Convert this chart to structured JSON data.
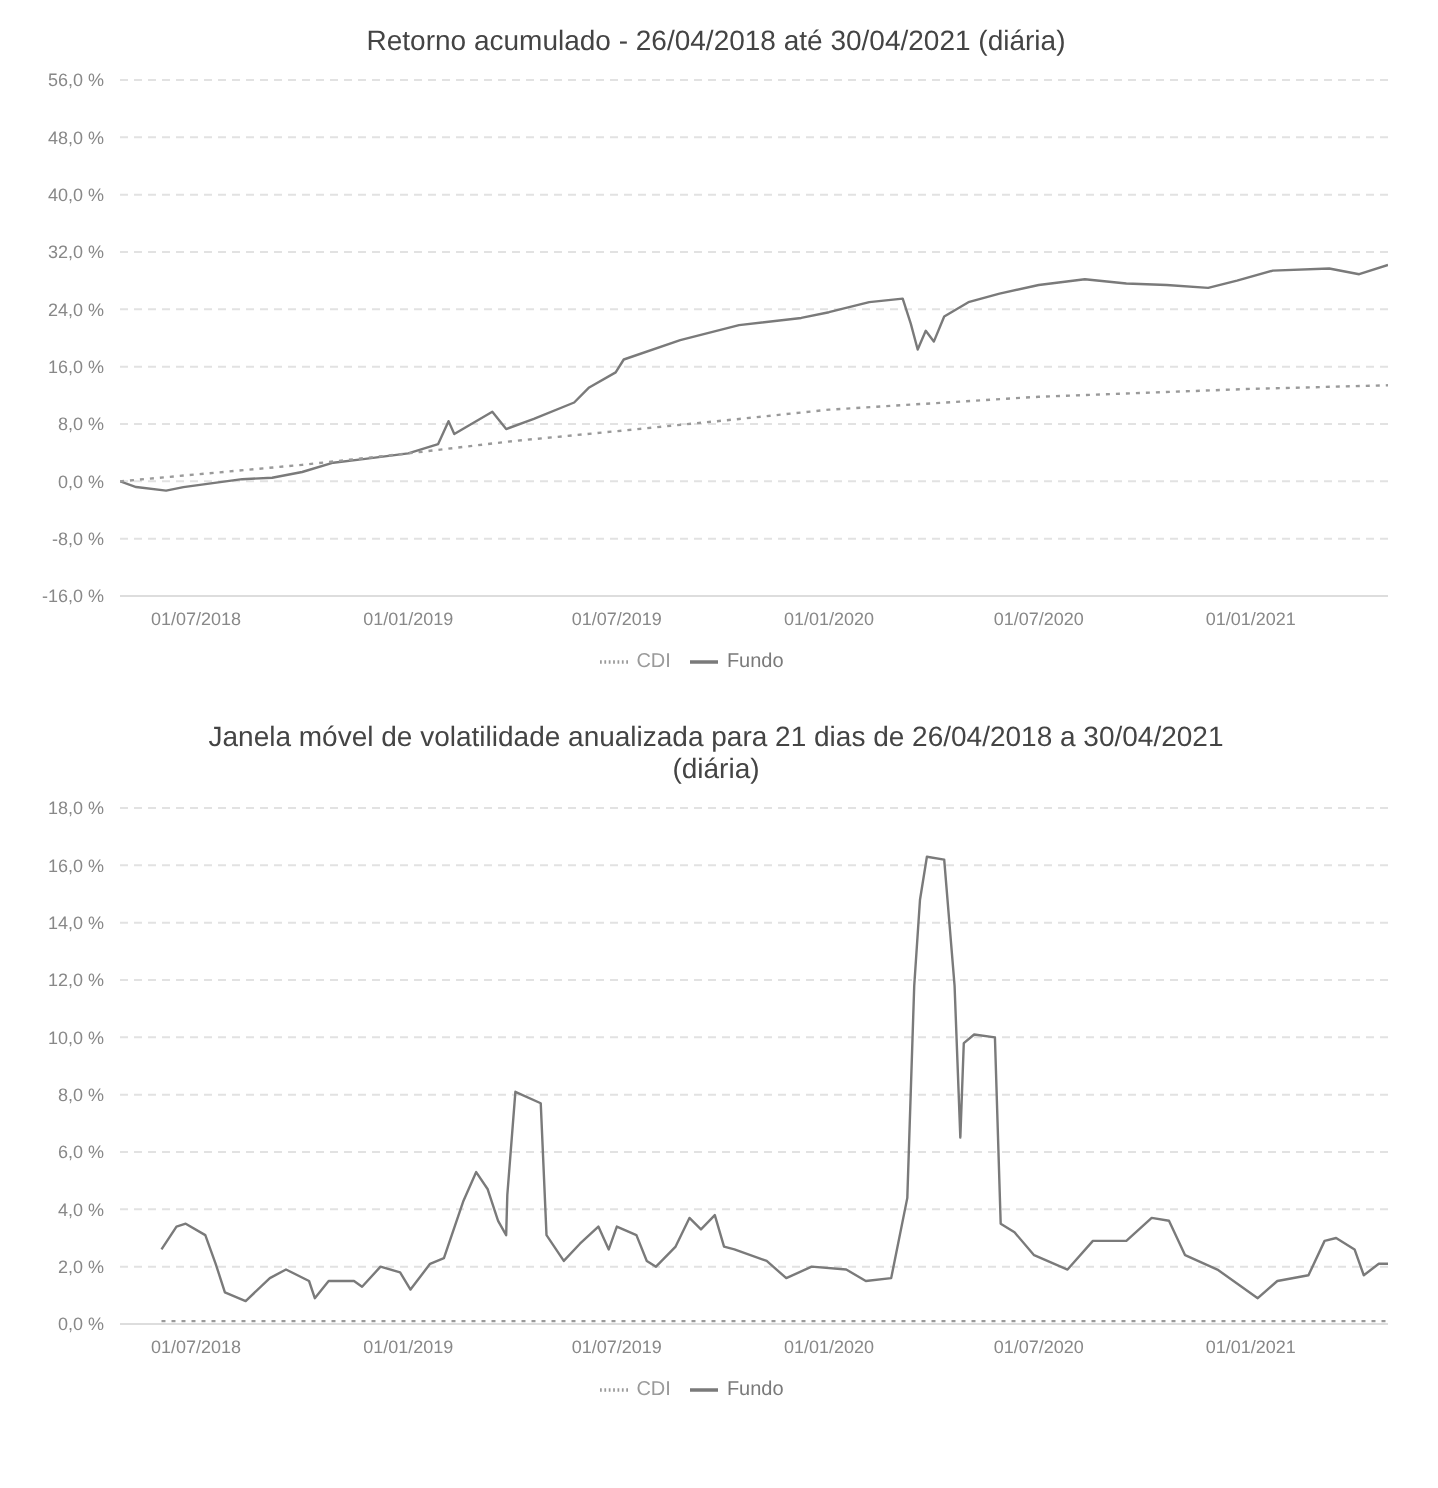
{
  "chart_data": [
    {
      "type": "line",
      "title": "Retorno acumulado - 26/04/2018 até 30/04/2021 (diária)",
      "xlim": [
        "2018-04-26",
        "2021-04-30"
      ],
      "xticks": [
        {
          "value": "2018-07-01",
          "label": "01/07/2018"
        },
        {
          "value": "2019-01-01",
          "label": "01/01/2019"
        },
        {
          "value": "2019-07-01",
          "label": "01/07/2019"
        },
        {
          "value": "2020-01-01",
          "label": "01/01/2020"
        },
        {
          "value": "2020-07-01",
          "label": "01/07/2020"
        },
        {
          "value": "2021-01-01",
          "label": "01/01/2021"
        }
      ],
      "ylim": [
        -16,
        56
      ],
      "yticks": [
        {
          "value": -16,
          "label": "-16,0 %"
        },
        {
          "value": -8,
          "label": "-8,0 %"
        },
        {
          "value": 0,
          "label": "0,0 %"
        },
        {
          "value": 8,
          "label": "8,0 %"
        },
        {
          "value": 16,
          "label": "16,0 %"
        },
        {
          "value": 24,
          "label": "24,0 %"
        },
        {
          "value": 32,
          "label": "32,0 %"
        },
        {
          "value": 40,
          "label": "40,0 %"
        },
        {
          "value": 48,
          "label": "48,0 %"
        },
        {
          "value": 56,
          "label": "56,0 %"
        }
      ],
      "grid": "y",
      "legend": "bottom",
      "series": [
        {
          "name": "Fundo",
          "color": "#7a7a7a",
          "line_style": "solid",
          "x": [
            "2018-04-26",
            "2018-05-10",
            "2018-06-05",
            "2018-06-20",
            "2018-08-10",
            "2018-09-05",
            "2018-10-01",
            "2018-10-28",
            "2018-11-23",
            "2019-01-01",
            "2019-01-27",
            "2019-02-05",
            "2019-02-10",
            "2019-03-15",
            "2019-03-27",
            "2019-04-20",
            "2019-05-25",
            "2019-06-07",
            "2019-06-30",
            "2019-07-07",
            "2019-08-25",
            "2019-10-15",
            "2019-12-08",
            "2020-01-01",
            "2020-02-05",
            "2020-03-05",
            "2020-03-12",
            "2020-03-18",
            "2020-03-25",
            "2020-04-01",
            "2020-04-10",
            "2020-05-01",
            "2020-05-28",
            "2020-07-01",
            "2020-08-10",
            "2020-09-15",
            "2020-10-20",
            "2020-11-25",
            "2020-12-20",
            "2021-01-20",
            "2021-03-10",
            "2021-04-05",
            "2021-04-30"
          ],
          "values": [
            0,
            -0.8,
            -1.3,
            -0.8,
            0.3,
            0.5,
            1.3,
            2.6,
            3.1,
            3.9,
            5.2,
            8.4,
            6.6,
            9.7,
            7.3,
            8.7,
            11,
            13.1,
            15.2,
            17,
            19.7,
            21.8,
            22.8,
            23.6,
            25,
            25.5,
            22,
            18.4,
            21,
            19.5,
            23,
            25,
            26.2,
            27.4,
            28.2,
            27.6,
            27.4,
            27,
            28,
            29.4,
            29.7,
            28.9,
            30.2
          ]
        },
        {
          "name": "CDI",
          "color": "#9a9a9a",
          "line_style": "dotted",
          "x": [
            "2018-04-26",
            "2018-10-01",
            "2019-01-01",
            "2019-04-01",
            "2019-07-01",
            "2019-10-15",
            "2020-01-01",
            "2020-07-01",
            "2021-01-01",
            "2021-04-30"
          ],
          "values": [
            0,
            2.3,
            3.9,
            5.6,
            7,
            8.7,
            10,
            11.8,
            12.9,
            13.4
          ]
        }
      ]
    },
    {
      "type": "line",
      "title": "Janela móvel de volatilidade anualizada para 21 dias de 26/04/2018 a 30/04/2021 (diária)",
      "xlim": [
        "2018-04-26",
        "2021-04-30"
      ],
      "xticks": [
        {
          "value": "2018-07-01",
          "label": "01/07/2018"
        },
        {
          "value": "2019-01-01",
          "label": "01/01/2019"
        },
        {
          "value": "2019-07-01",
          "label": "01/07/2019"
        },
        {
          "value": "2020-01-01",
          "label": "01/01/2020"
        },
        {
          "value": "2020-07-01",
          "label": "01/07/2020"
        },
        {
          "value": "2021-01-01",
          "label": "01/01/2021"
        }
      ],
      "ylim": [
        0,
        18
      ],
      "yticks": [
        {
          "value": 0,
          "label": "0,0 %"
        },
        {
          "value": 2,
          "label": "2,0 %"
        },
        {
          "value": 4,
          "label": "4,0 %"
        },
        {
          "value": 6,
          "label": "6,0 %"
        },
        {
          "value": 8,
          "label": "8,0 %"
        },
        {
          "value": 10,
          "label": "10,0 %"
        },
        {
          "value": 12,
          "label": "12,0 %"
        },
        {
          "value": 14,
          "label": "14,0 %"
        },
        {
          "value": 16,
          "label": "16,0 %"
        },
        {
          "value": 18,
          "label": "18,0 %"
        }
      ],
      "grid": "y",
      "legend": "bottom",
      "series": [
        {
          "name": "Fundo",
          "color": "#7a7a7a",
          "line_style": "solid",
          "x": [
            "2018-06-01",
            "2018-06-14",
            "2018-06-22",
            "2018-07-09",
            "2018-07-18",
            "2018-07-26",
            "2018-08-13",
            "2018-09-03",
            "2018-09-17",
            "2018-10-07",
            "2018-10-12",
            "2018-10-24",
            "2018-11-15",
            "2018-11-22",
            "2018-12-08",
            "2018-12-25",
            "2019-01-03",
            "2019-01-20",
            "2019-02-01",
            "2019-02-18",
            "2019-03-01",
            "2019-03-11",
            "2019-03-20",
            "2019-03-27",
            "2019-03-28",
            "2019-04-04",
            "2019-04-26",
            "2019-05-01",
            "2019-05-16",
            "2019-05-30",
            "2019-06-15",
            "2019-06-24",
            "2019-07-01",
            "2019-07-18",
            "2019-07-27",
            "2019-08-04",
            "2019-08-21",
            "2019-09-02",
            "2019-09-12",
            "2019-09-24",
            "2019-10-02",
            "2019-10-11",
            "2019-11-08",
            "2019-11-25",
            "2019-12-17",
            "2020-01-16",
            "2020-02-02",
            "2020-02-24",
            "2020-03-09",
            "2020-03-15",
            "2020-03-20",
            "2020-03-26",
            "2020-04-10",
            "2020-04-19",
            "2020-04-24",
            "2020-04-27",
            "2020-05-06",
            "2020-05-24",
            "2020-05-29",
            "2020-06-10",
            "2020-06-27",
            "2020-07-26",
            "2020-08-17",
            "2020-09-15",
            "2020-10-07",
            "2020-10-22",
            "2020-11-05",
            "2020-12-03",
            "2021-01-07",
            "2021-01-24",
            "2021-02-20",
            "2021-03-06",
            "2021-03-16",
            "2021-04-01",
            "2021-04-09",
            "2021-04-22",
            "2021-04-30"
          ],
          "values": [
            2.6,
            3.4,
            3.5,
            3.1,
            2.1,
            1.1,
            0.8,
            1.6,
            1.9,
            1.5,
            0.9,
            1.5,
            1.5,
            1.3,
            2,
            1.8,
            1.2,
            2.1,
            2.3,
            4.3,
            5.3,
            4.7,
            3.6,
            3.1,
            4.5,
            8.1,
            7.7,
            3.1,
            2.2,
            2.8,
            3.4,
            2.6,
            3.4,
            3.1,
            2.2,
            2,
            2.7,
            3.7,
            3.3,
            3.8,
            2.7,
            2.6,
            2.2,
            1.6,
            2,
            1.9,
            1.5,
            1.6,
            4.4,
            11.8,
            14.8,
            16.3,
            16.2,
            11.8,
            6.5,
            9.8,
            10.1,
            10,
            3.5,
            3.2,
            2.4,
            1.9,
            2.9,
            2.9,
            3.7,
            3.6,
            2.4,
            1.9,
            0.9,
            1.5,
            1.7,
            2.9,
            3,
            2.6,
            1.7,
            2.1,
            2.1
          ]
        },
        {
          "name": "CDI",
          "color": "#9a9a9a",
          "line_style": "dotted",
          "x": [
            "2018-06-01",
            "2019-01-01",
            "2020-01-01",
            "2021-01-01",
            "2021-04-30"
          ],
          "values": [
            0.1,
            0.1,
            0.1,
            0.1,
            0.1
          ]
        }
      ]
    }
  ]
}
